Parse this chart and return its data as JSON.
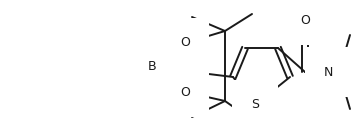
{
  "bg_color": "#ffffff",
  "line_color": "#1a1a1a",
  "line_width": 1.4,
  "font_size": 9.5,
  "figsize": [
    3.52,
    1.34
  ],
  "dpi": 100,
  "xlim": [
    0,
    352
  ],
  "ylim": [
    0,
    134
  ]
}
